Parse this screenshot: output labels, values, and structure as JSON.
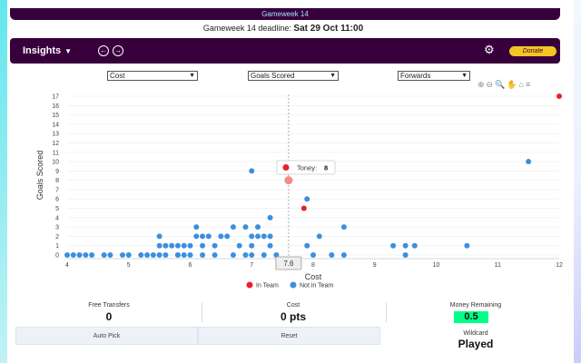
{
  "header": {
    "gameweek_title": "Gameweek 14",
    "deadline_label": "Gameweek 14 deadline:",
    "deadline_value": "Sat 29 Oct 11:00"
  },
  "toolbar": {
    "insights_label": "Insights",
    "prev_icon": "arrow-left-circle-icon",
    "next_icon": "arrow-right-circle-icon",
    "settings_icon": "gear-icon",
    "donate_label": "Donate",
    "donate_color": "#f5c623",
    "bar_color": "#37003c"
  },
  "filters": {
    "x_metric": "Cost",
    "y_metric": "Goals Scored",
    "position": "Forwards"
  },
  "chart_tools": [
    "zoom-in-icon",
    "zoom-out-icon",
    "magnify-icon",
    "pan-hand-icon",
    "home-icon",
    "menu-icon"
  ],
  "tooltip": {
    "name": "Toney:",
    "value": "8"
  },
  "crosshair_label": "7.6",
  "chart_data": {
    "type": "scatter",
    "xlabel": "Cost",
    "ylabel": "Goals Scored",
    "xlim": [
      4,
      12
    ],
    "ylim": [
      0,
      17
    ],
    "x_ticks": [
      "4",
      "5",
      "6",
      "7",
      "8",
      "9",
      "10",
      "11",
      "12"
    ],
    "y_ticks": [
      "0",
      "1",
      "2",
      "3",
      "4",
      "5",
      "6",
      "7",
      "8",
      "9",
      "10",
      "11",
      "12",
      "13",
      "14",
      "15",
      "16",
      "17"
    ],
    "legend": [
      "In Team",
      "Not in Team"
    ],
    "legend_position": "bottom",
    "series": [
      {
        "name": "In Team",
        "color": "#e8202a",
        "points": [
          [
            7.6,
            8
          ],
          [
            7.85,
            5
          ],
          [
            12.0,
            17
          ]
        ]
      },
      {
        "name": "Not in Team",
        "color": "#3b8fe0",
        "points": [
          [
            4.0,
            0
          ],
          [
            4.1,
            0
          ],
          [
            4.2,
            0
          ],
          [
            4.3,
            0
          ],
          [
            4.4,
            0
          ],
          [
            4.6,
            0
          ],
          [
            4.7,
            0
          ],
          [
            4.9,
            0
          ],
          [
            5.0,
            0
          ],
          [
            5.2,
            0
          ],
          [
            5.3,
            0
          ],
          [
            5.4,
            0
          ],
          [
            5.5,
            0
          ],
          [
            5.6,
            0
          ],
          [
            5.8,
            0
          ],
          [
            5.9,
            0
          ],
          [
            6.0,
            0
          ],
          [
            6.2,
            0
          ],
          [
            6.4,
            0
          ],
          [
            6.7,
            0
          ],
          [
            6.9,
            0
          ],
          [
            7.0,
            0
          ],
          [
            7.2,
            0
          ],
          [
            7.4,
            0
          ],
          [
            5.7,
            1
          ],
          [
            5.8,
            1
          ],
          [
            6.0,
            1
          ],
          [
            6.2,
            1
          ],
          [
            6.4,
            1
          ],
          [
            7.0,
            1
          ],
          [
            7.3,
            1
          ],
          [
            7.9,
            1
          ],
          [
            8.0,
            0
          ],
          [
            8.3,
            0
          ],
          [
            8.5,
            0
          ],
          [
            9.3,
            1
          ],
          [
            9.5,
            0
          ],
          [
            9.5,
            1
          ],
          [
            9.65,
            1
          ],
          [
            10.5,
            1
          ],
          [
            5.5,
            1
          ],
          [
            5.6,
            1
          ],
          [
            5.9,
            1
          ],
          [
            6.1,
            2
          ],
          [
            6.2,
            2
          ],
          [
            6.3,
            2
          ],
          [
            6.5,
            2
          ],
          [
            7.0,
            2
          ],
          [
            7.2,
            2
          ],
          [
            7.1,
            2
          ],
          [
            7.3,
            2
          ],
          [
            8.1,
            2
          ],
          [
            6.1,
            3
          ],
          [
            6.7,
            3
          ],
          [
            6.9,
            3
          ],
          [
            7.1,
            3
          ],
          [
            8.5,
            3
          ],
          [
            5.5,
            2
          ],
          [
            7.3,
            4
          ],
          [
            7.0,
            9
          ],
          [
            7.9,
            6
          ],
          [
            11.5,
            10
          ],
          [
            6.8,
            1
          ],
          [
            6.6,
            2
          ],
          [
            5.8,
            0
          ]
        ]
      }
    ]
  },
  "stats": {
    "free_transfers_label": "Free Transfers",
    "free_transfers_value": "0",
    "cost_label": "Cost",
    "cost_value": "0 pts",
    "money_label": "Money Remaining",
    "money_value": "0.5",
    "money_color": "#00ff87"
  },
  "actions": {
    "auto_pick_label": "Auto Pick",
    "reset_label": "Reset",
    "wildcard_label": "Wildcard",
    "wildcard_status": "Played"
  }
}
